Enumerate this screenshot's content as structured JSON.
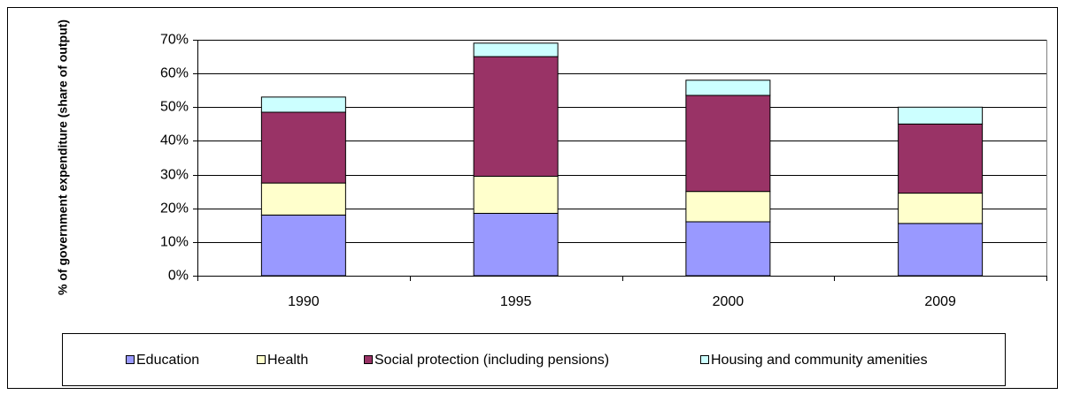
{
  "chart_data": {
    "type": "stacked-bar",
    "y_label": "% of government expenditure (share of output)",
    "categories": [
      "1990",
      "1995",
      "2000",
      "2009"
    ],
    "series": [
      {
        "name": "Education",
        "color": "#9999ff",
        "values": [
          18,
          18.5,
          16,
          15.5
        ]
      },
      {
        "name": "Health",
        "color": "#ffffcc",
        "values": [
          9.5,
          11,
          9,
          9
        ]
      },
      {
        "name": "Social protection (including pensions)",
        "color": "#993366",
        "values": [
          21,
          35.5,
          28.5,
          20.5
        ]
      },
      {
        "name": "Housing and community amenities",
        "color": "#ccffff",
        "values": [
          4.5,
          4,
          4.5,
          5
        ]
      }
    ],
    "ylim": [
      0,
      70
    ],
    "yticks": [
      {
        "value": 0,
        "label": "0%"
      },
      {
        "value": 10,
        "label": "10%"
      },
      {
        "value": 20,
        "label": "20%"
      },
      {
        "value": 30,
        "label": "30%"
      },
      {
        "value": 40,
        "label": "40%"
      },
      {
        "value": 50,
        "label": "50%"
      },
      {
        "value": 60,
        "label": "60%"
      },
      {
        "value": 70,
        "label": "70%"
      }
    ],
    "grid": true,
    "legend": "bottom"
  }
}
